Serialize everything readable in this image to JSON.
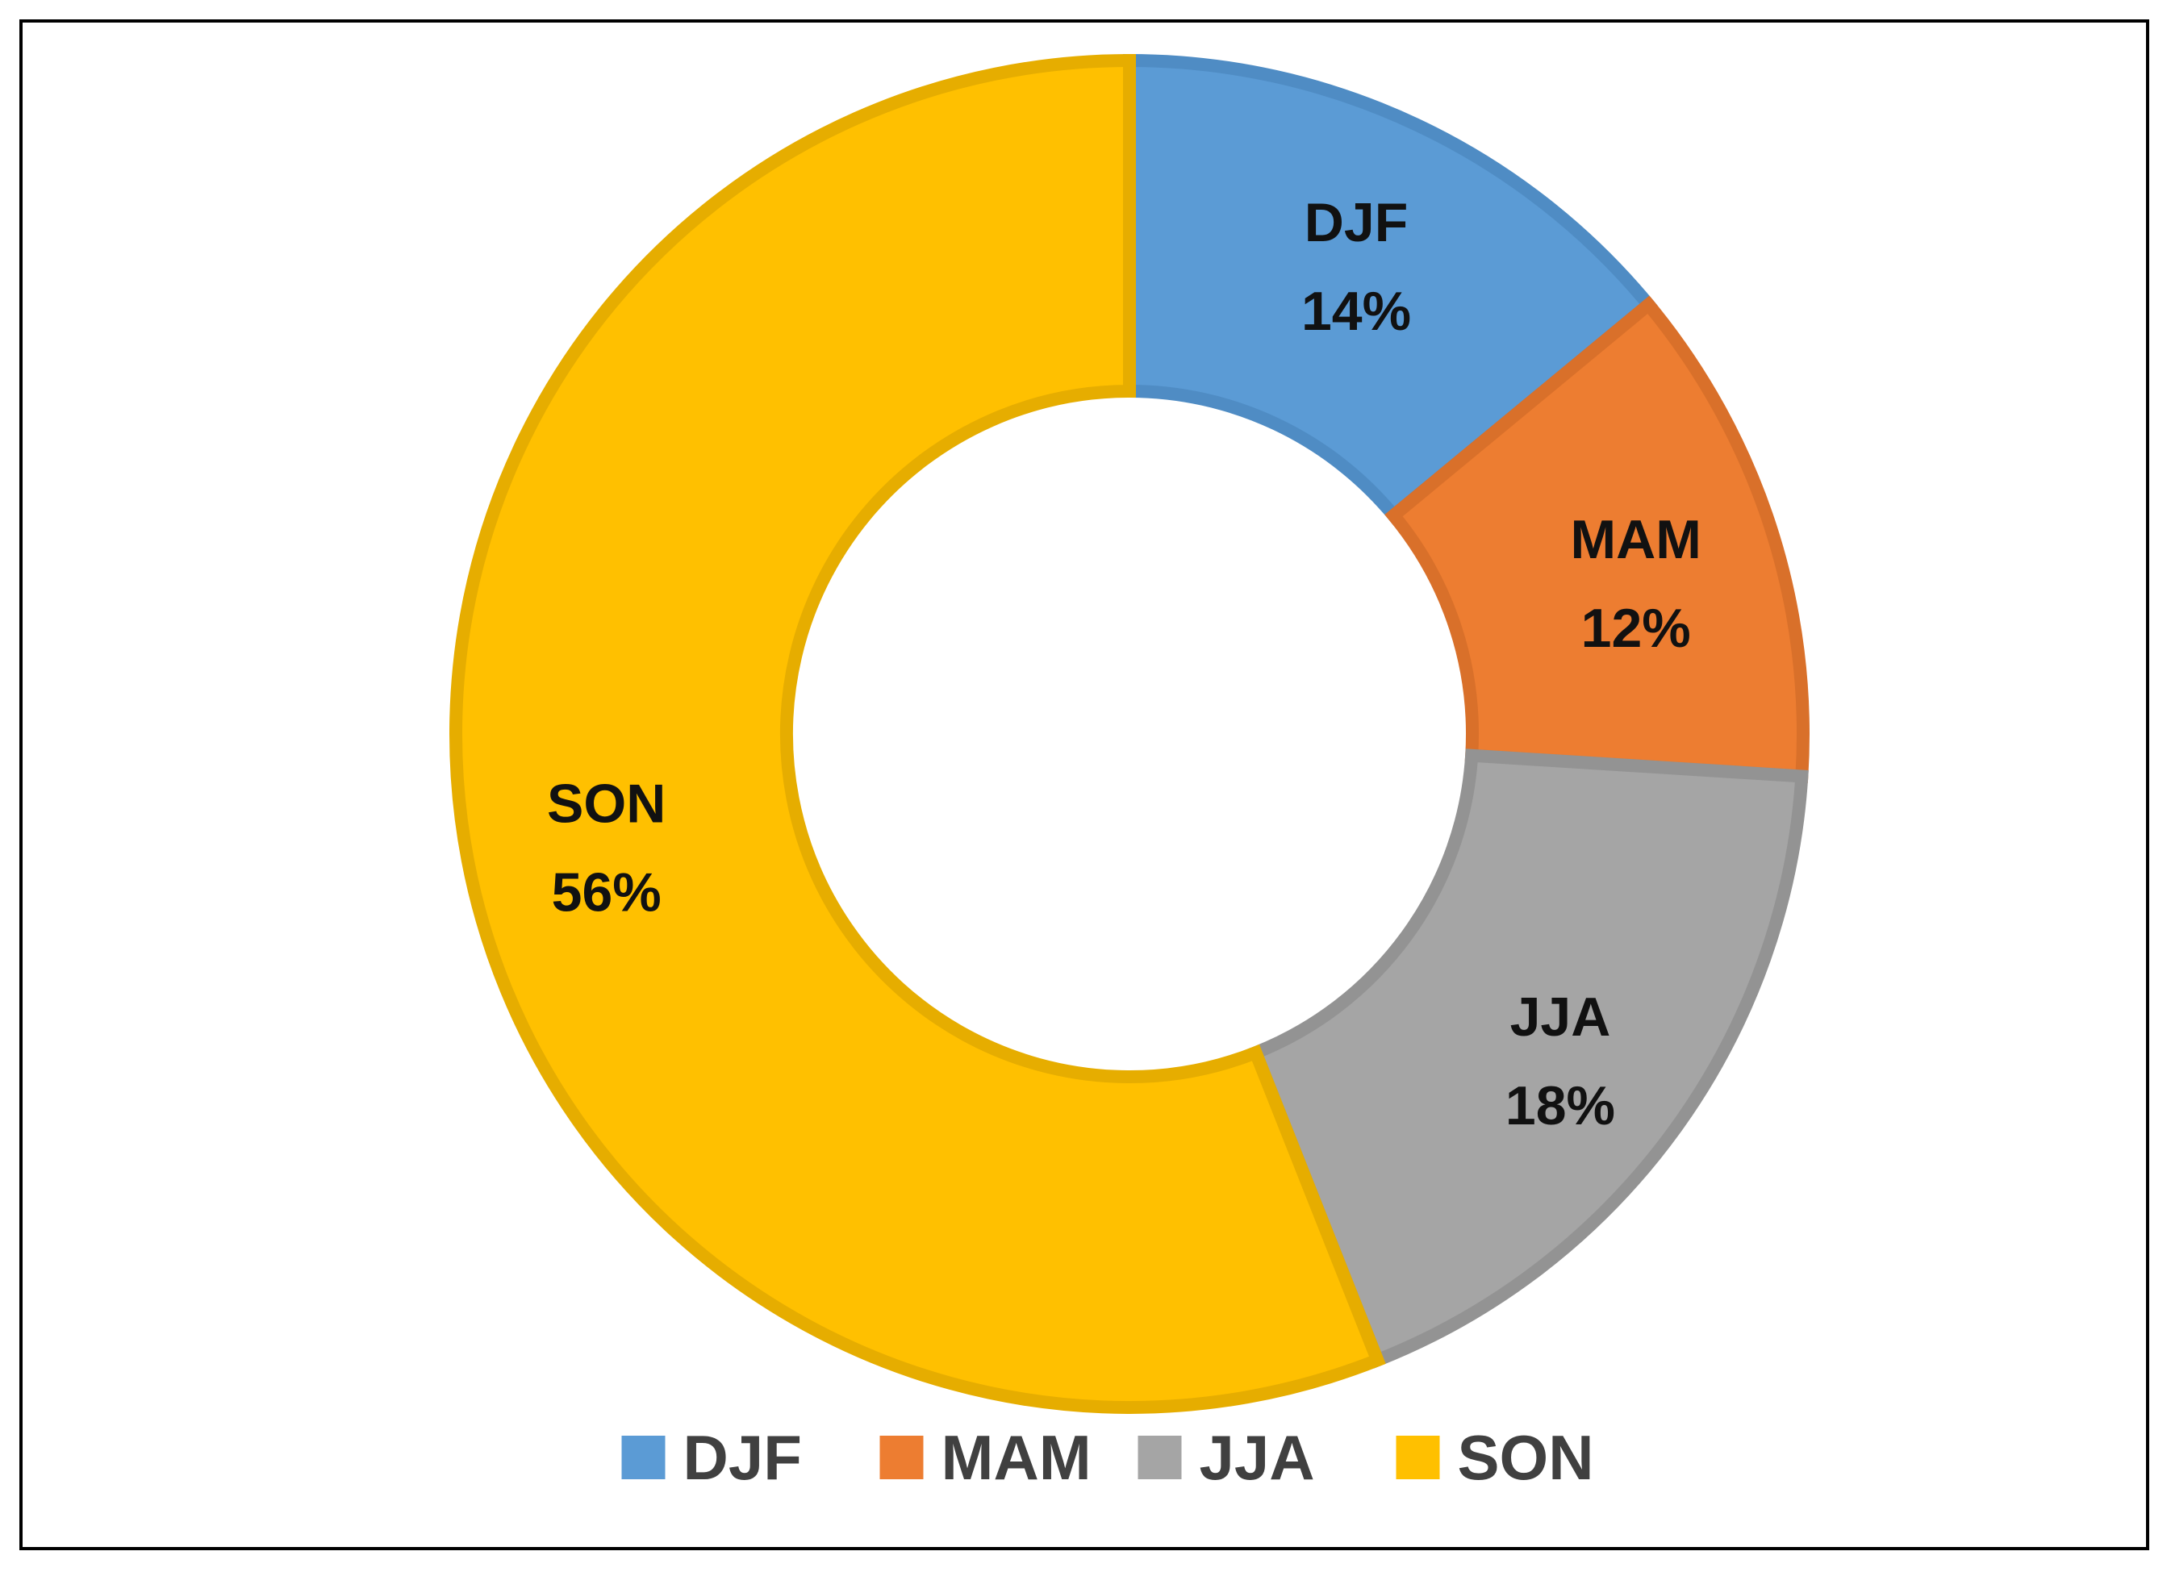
{
  "chart_data": {
    "type": "pie",
    "variant": "donut",
    "categories": [
      "DJF",
      "MAM",
      "JJA",
      "SON"
    ],
    "values": [
      14,
      12,
      18,
      56
    ],
    "value_labels": [
      "14%",
      "12%",
      "18%",
      "56%"
    ],
    "colors": [
      "#5B9BD5",
      "#ED7D31",
      "#A5A5A5",
      "#FFC000"
    ],
    "border_colors": [
      "#4F8CC4",
      "#D9702A",
      "#939393",
      "#E6AD00"
    ],
    "legend": {
      "position": "bottom",
      "items": [
        "DJF",
        "MAM",
        "JJA",
        "SON"
      ]
    },
    "title": ""
  }
}
